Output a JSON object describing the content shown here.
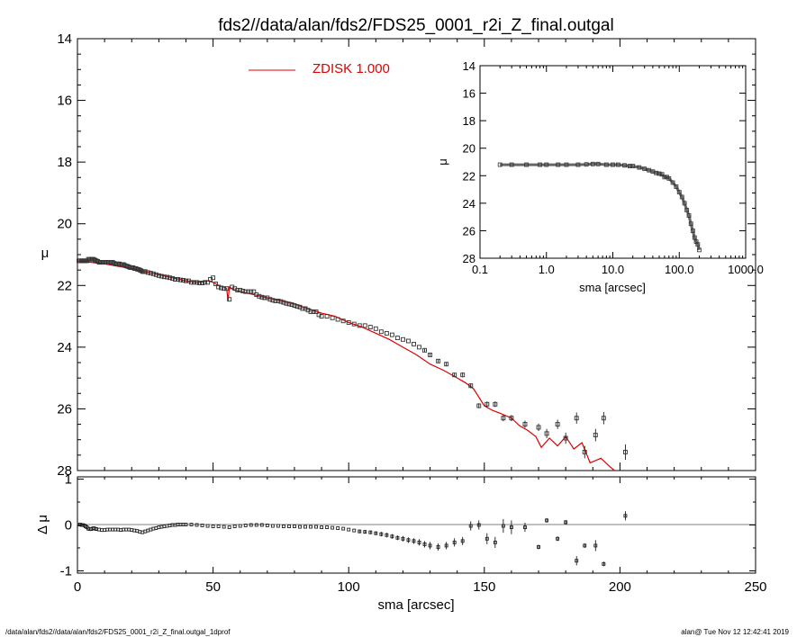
{
  "title": "fds2//data/alan/fds2/FDS25_0001_r2i_Z_final.outgal",
  "footer_left": "/data/alan/fds2//data/alan/fds2/FDS25_0001_r2i_Z_final.outgal_1dprof",
  "footer_right": "alan@  Tue Nov 12 12:42:41 2019",
  "colors": {
    "model": "#e00000",
    "data": "#000000",
    "zero_line": "#808080"
  },
  "chart_data": [
    {
      "type": "scatter",
      "panel": "main",
      "xlabel": "sma [arcsec]",
      "ylabel": "μ",
      "xlim": [
        0,
        250
      ],
      "ylim": [
        28,
        14
      ],
      "xticks": [
        "0",
        "50",
        "100",
        "150",
        "200",
        "250"
      ],
      "yticks": [
        "14",
        "16",
        "18",
        "20",
        "22",
        "24",
        "26",
        "28"
      ],
      "legend": {
        "label": "ZDISK  1.000",
        "position": "top-center"
      },
      "series": [
        {
          "kind": "data-points",
          "x": [
            0.5,
            1,
            1.5,
            2,
            2.5,
            3,
            3.5,
            4,
            4.5,
            5,
            5.5,
            6,
            6.5,
            7,
            7.5,
            8,
            8.5,
            9,
            9.5,
            10,
            10.5,
            11,
            11.5,
            12,
            12.5,
            13,
            13.5,
            14,
            14.5,
            15,
            15.5,
            16,
            16.5,
            17,
            17.5,
            18,
            18.5,
            19,
            19.5,
            20,
            20.5,
            21,
            21.5,
            22,
            22.5,
            23,
            23.5,
            24,
            24.5,
            25,
            26,
            27,
            28,
            29,
            30,
            31,
            32,
            33,
            34,
            35,
            36,
            37,
            38,
            39,
            40,
            41,
            42,
            43,
            44,
            45,
            46,
            47,
            48,
            49,
            50,
            51,
            52,
            53,
            54,
            55,
            56,
            57,
            58,
            59,
            60,
            61,
            62,
            63,
            64,
            65,
            66,
            67,
            68,
            69,
            70,
            71,
            72,
            73,
            74,
            75,
            76,
            77,
            78,
            79,
            80,
            81,
            82,
            83,
            84,
            85,
            86,
            87,
            88,
            89,
            90,
            92,
            94,
            96,
            98,
            100,
            102,
            104,
            106,
            108,
            110,
            112,
            114,
            116,
            118,
            120,
            122,
            124,
            126,
            128,
            130,
            133,
            136,
            139,
            142,
            145,
            148,
            151,
            154,
            157,
            160,
            165,
            170,
            173,
            177,
            180,
            184,
            187,
            191,
            194,
            202
          ],
          "y": [
            21.2,
            21.2,
            21.2,
            21.2,
            21.2,
            21.2,
            21.2,
            21.15,
            21.15,
            21.15,
            21.15,
            21.15,
            21.18,
            21.2,
            21.22,
            21.25,
            21.25,
            21.25,
            21.25,
            21.25,
            21.25,
            21.25,
            21.25,
            21.25,
            21.25,
            21.25,
            21.28,
            21.3,
            21.3,
            21.3,
            21.3,
            21.32,
            21.32,
            21.32,
            21.35,
            21.37,
            21.38,
            21.4,
            21.42,
            21.42,
            21.42,
            21.45,
            21.45,
            21.47,
            21.48,
            21.5,
            21.52,
            21.55,
            21.55,
            21.55,
            21.58,
            21.6,
            21.62,
            21.65,
            21.68,
            21.7,
            21.72,
            21.73,
            21.75,
            21.77,
            21.8,
            21.8,
            21.82,
            21.83,
            21.85,
            21.85,
            21.9,
            21.9,
            21.9,
            21.92,
            21.92,
            21.9,
            21.9,
            21.8,
            21.75,
            21.95,
            22.05,
            22.08,
            22.1,
            22.1,
            22.45,
            22.05,
            22.1,
            22.15,
            22.15,
            22.18,
            22.2,
            22.2,
            22.2,
            22.2,
            22.3,
            22.35,
            22.38,
            22.4,
            22.4,
            22.45,
            22.48,
            22.5,
            22.5,
            22.52,
            22.55,
            22.58,
            22.6,
            22.62,
            22.65,
            22.68,
            22.7,
            22.75,
            22.75,
            22.8,
            22.85,
            22.85,
            22.85,
            22.95,
            23.0,
            23.0,
            23.05,
            23.1,
            23.15,
            23.2,
            23.25,
            23.3,
            23.3,
            23.35,
            23.4,
            23.5,
            23.55,
            23.6,
            23.7,
            23.75,
            23.8,
            23.9,
            24.0,
            24.1,
            24.25,
            24.45,
            24.55,
            24.9,
            24.9,
            25.25,
            25.9,
            25.85,
            25.85,
            26.3,
            26.3,
            26.5,
            26.6,
            26.8,
            26.5,
            26.95,
            26.3,
            27.4,
            26.85,
            26.3,
            27.4
          ],
          "yerr": [
            0.02,
            0.02,
            0.02,
            0.02,
            0.02,
            0.02,
            0.02,
            0.02,
            0.02,
            0.02,
            0.02,
            0.02,
            0.02,
            0.02,
            0.02,
            0.02,
            0.02,
            0.02,
            0.02,
            0.02,
            0.02,
            0.02,
            0.02,
            0.02,
            0.02,
            0.02,
            0.02,
            0.02,
            0.02,
            0.02,
            0.02,
            0.02,
            0.02,
            0.02,
            0.02,
            0.02,
            0.02,
            0.02,
            0.02,
            0.02,
            0.02,
            0.02,
            0.02,
            0.02,
            0.02,
            0.02,
            0.02,
            0.02,
            0.02,
            0.02,
            0.02,
            0.02,
            0.02,
            0.02,
            0.02,
            0.02,
            0.02,
            0.02,
            0.02,
            0.02,
            0.02,
            0.02,
            0.02,
            0.02,
            0.02,
            0.02,
            0.02,
            0.02,
            0.02,
            0.02,
            0.02,
            0.02,
            0.02,
            0.02,
            0.02,
            0.02,
            0.02,
            0.02,
            0.02,
            0.02,
            0.02,
            0.02,
            0.02,
            0.02,
            0.02,
            0.02,
            0.02,
            0.02,
            0.02,
            0.02,
            0.02,
            0.02,
            0.02,
            0.02,
            0.02,
            0.02,
            0.02,
            0.02,
            0.02,
            0.02,
            0.02,
            0.02,
            0.02,
            0.02,
            0.02,
            0.02,
            0.02,
            0.02,
            0.02,
            0.02,
            0.02,
            0.02,
            0.02,
            0.02,
            0.03,
            0.03,
            0.03,
            0.03,
            0.03,
            0.03,
            0.03,
            0.03,
            0.03,
            0.03,
            0.04,
            0.04,
            0.04,
            0.04,
            0.04,
            0.05,
            0.05,
            0.05,
            0.05,
            0.06,
            0.06,
            0.06,
            0.07,
            0.07,
            0.08,
            0.08,
            0.08,
            0.09,
            0.09,
            0.1,
            0.1,
            0.12,
            0.12,
            0.15,
            0.15,
            0.18,
            0.18,
            0.2,
            0.2,
            0.2,
            0.25
          ]
        },
        {
          "kind": "model-line",
          "name": "ZDISK  1.000",
          "x": [
            0,
            5,
            10,
            15,
            20,
            25,
            30,
            35,
            40,
            45,
            48,
            50,
            52,
            54,
            55,
            55.5,
            56,
            58,
            60,
            65,
            70,
            75,
            80,
            85,
            90,
            95,
            100,
            105,
            110,
            115,
            120,
            125,
            130,
            135,
            140,
            143,
            146,
            150,
            153,
            156,
            160,
            163,
            166,
            169,
            171,
            174,
            177,
            180,
            183,
            186,
            189,
            193,
            196,
            198
          ],
          "y": [
            21.2,
            21.25,
            21.3,
            21.38,
            21.45,
            21.55,
            21.65,
            21.75,
            21.85,
            21.9,
            21.85,
            21.9,
            22.0,
            22.05,
            22.1,
            22.5,
            22.05,
            22.15,
            22.2,
            22.3,
            22.4,
            22.5,
            22.6,
            22.75,
            22.9,
            23.0,
            23.2,
            23.35,
            23.55,
            23.75,
            24.0,
            24.25,
            24.55,
            24.75,
            25.0,
            25.15,
            25.35,
            25.9,
            26.05,
            26.15,
            26.3,
            26.55,
            26.7,
            26.9,
            27.25,
            26.95,
            27.2,
            26.9,
            27.3,
            27.1,
            27.75,
            27.6,
            27.85,
            28.1
          ]
        }
      ]
    },
    {
      "type": "scatter",
      "panel": "inset",
      "xlabel": "sma [arcsec]",
      "ylabel": "μ",
      "xscale": "log",
      "xlim": [
        0.1,
        1000
      ],
      "ylim": [
        28,
        14
      ],
      "xticks": [
        "0.1",
        "1.0",
        "10.0",
        "100.0",
        "1000.0"
      ],
      "yticks": [
        "14",
        "16",
        "18",
        "20",
        "22",
        "24",
        "26",
        "28"
      ],
      "series": [
        {
          "kind": "data-points",
          "x": [
            0.2,
            0.3,
            0.5,
            0.8,
            1,
            1.5,
            2,
            3,
            4,
            5,
            6,
            8,
            10,
            12,
            15,
            18,
            20,
            25,
            30,
            35,
            40,
            45,
            50,
            55,
            60,
            65,
            70,
            80,
            90,
            100,
            110,
            120,
            130,
            140,
            150,
            160,
            170,
            180,
            190,
            200
          ],
          "y": [
            21.2,
            21.2,
            21.2,
            21.2,
            21.2,
            21.2,
            21.2,
            21.2,
            21.18,
            21.15,
            21.15,
            21.2,
            21.2,
            21.2,
            21.25,
            21.3,
            21.3,
            21.4,
            21.5,
            21.6,
            21.7,
            21.8,
            21.85,
            21.9,
            22.1,
            22.1,
            22.2,
            22.5,
            22.8,
            23.2,
            23.55,
            24.0,
            24.5,
            24.9,
            25.5,
            26.0,
            26.5,
            26.8,
            27.0,
            27.4
          ]
        }
      ]
    },
    {
      "type": "scatter",
      "panel": "residual",
      "xlabel": "sma [arcsec]",
      "ylabel": "Δ μ",
      "xlim": [
        0,
        250
      ],
      "ylim": [
        -1.05,
        1.05
      ],
      "yticks": [
        "1",
        "0",
        "-1"
      ],
      "reference_line": 0,
      "series": [
        {
          "kind": "residual-points",
          "x": [
            0.5,
            1,
            1.5,
            2,
            2.5,
            3,
            3.5,
            4,
            4.5,
            5,
            5.5,
            6,
            6.5,
            7,
            8,
            9,
            10,
            11,
            12,
            13,
            14,
            15,
            16,
            17,
            18,
            19,
            20,
            21,
            22,
            23,
            24,
            25,
            26,
            27,
            28,
            29,
            30,
            31,
            32,
            33,
            34,
            35,
            36,
            37,
            38,
            39,
            40,
            42,
            44,
            46,
            48,
            50,
            52,
            54,
            56,
            58,
            60,
            62,
            64,
            66,
            68,
            70,
            72,
            74,
            76,
            78,
            80,
            82,
            84,
            86,
            88,
            90,
            92,
            94,
            96,
            98,
            100,
            102,
            104,
            106,
            108,
            110,
            112,
            114,
            116,
            118,
            120,
            122,
            124,
            126,
            128,
            130,
            133,
            136,
            139,
            142,
            145,
            148,
            151,
            154,
            157,
            160,
            165,
            170,
            173,
            177,
            180,
            184,
            187,
            191,
            194,
            202
          ],
          "y": [
            0.01,
            0.01,
            0.0,
            0.0,
            -0.01,
            -0.03,
            -0.05,
            -0.08,
            -0.09,
            -0.09,
            -0.08,
            -0.07,
            -0.08,
            -0.09,
            -0.1,
            -0.11,
            -0.11,
            -0.1,
            -0.1,
            -0.1,
            -0.1,
            -0.1,
            -0.11,
            -0.1,
            -0.1,
            -0.1,
            -0.11,
            -0.12,
            -0.13,
            -0.15,
            -0.16,
            -0.14,
            -0.12,
            -0.1,
            -0.08,
            -0.07,
            -0.05,
            -0.04,
            -0.03,
            -0.02,
            -0.01,
            0.0,
            0.0,
            0.01,
            0.01,
            0.01,
            0.01,
            0.01,
            0.0,
            -0.01,
            -0.02,
            -0.03,
            -0.03,
            -0.04,
            -0.05,
            -0.03,
            -0.02,
            -0.01,
            0.0,
            0.0,
            0.0,
            -0.01,
            -0.02,
            -0.02,
            -0.03,
            -0.03,
            -0.03,
            -0.04,
            -0.04,
            -0.04,
            -0.04,
            -0.05,
            -0.05,
            -0.06,
            -0.07,
            -0.08,
            -0.1,
            -0.12,
            -0.14,
            -0.15,
            -0.16,
            -0.18,
            -0.2,
            -0.22,
            -0.25,
            -0.28,
            -0.3,
            -0.33,
            -0.35,
            -0.38,
            -0.42,
            -0.45,
            -0.48,
            -0.45,
            -0.38,
            -0.35,
            -0.02,
            0.0,
            -0.3,
            -0.38,
            -0.02,
            -0.05,
            -0.05,
            -0.48,
            0.1,
            -0.3,
            0.06,
            -0.78,
            -0.45,
            -0.45,
            -0.85,
            0.2
          ],
          "yerr": [
            0.02,
            0.02,
            0.02,
            0.02,
            0.02,
            0.02,
            0.02,
            0.02,
            0.02,
            0.02,
            0.02,
            0.02,
            0.02,
            0.02,
            0.02,
            0.02,
            0.02,
            0.02,
            0.02,
            0.02,
            0.02,
            0.02,
            0.02,
            0.02,
            0.02,
            0.02,
            0.02,
            0.02,
            0.02,
            0.02,
            0.02,
            0.02,
            0.02,
            0.02,
            0.02,
            0.02,
            0.02,
            0.02,
            0.02,
            0.02,
            0.02,
            0.02,
            0.02,
            0.02,
            0.02,
            0.02,
            0.02,
            0.02,
            0.02,
            0.02,
            0.02,
            0.02,
            0.02,
            0.02,
            0.02,
            0.02,
            0.02,
            0.02,
            0.02,
            0.02,
            0.02,
            0.02,
            0.02,
            0.02,
            0.02,
            0.02,
            0.02,
            0.02,
            0.02,
            0.03,
            0.03,
            0.03,
            0.03,
            0.03,
            0.03,
            0.03,
            0.03,
            0.03,
            0.04,
            0.04,
            0.04,
            0.04,
            0.05,
            0.05,
            0.05,
            0.05,
            0.06,
            0.06,
            0.06,
            0.07,
            0.07,
            0.08,
            0.08,
            0.08,
            0.09,
            0.09,
            0.1,
            0.1,
            0.12,
            0.12,
            0.15,
            0.15,
            0.1,
            0.05,
            0.05,
            0.05,
            0.05,
            0.1,
            0.05,
            0.12,
            0.05,
            0.1
          ]
        }
      ]
    }
  ]
}
